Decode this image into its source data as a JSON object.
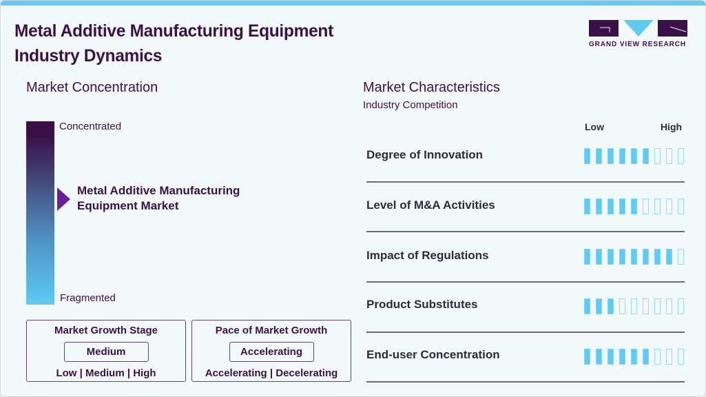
{
  "header": {
    "title_line1": "Metal Additive Manufacturing Equipment",
    "title_line2": "Industry Dynamics",
    "logo_text": "GRAND VIEW RESEARCH"
  },
  "colors": {
    "primary": "#3a1147",
    "accent": "#5ecbf5",
    "pointer": "#6a1f9b",
    "background": "#f3f8fb"
  },
  "concentration": {
    "title": "Market Concentration",
    "top_label": "Concentrated",
    "bottom_label": "Fragmented",
    "market_line1": "Metal Additive Manufacturing",
    "market_line2": "Equipment Market",
    "pointer_position_pct": 43
  },
  "growth_stage": {
    "title": "Market Growth Stage",
    "value": "Medium",
    "options": [
      "Low",
      "Medium",
      "High"
    ],
    "options_text": "Low  |  Medium  |  High"
  },
  "growth_pace": {
    "title": "Pace of Market Growth",
    "value": "Accelerating",
    "options": [
      "Accelerating",
      "Decelerating"
    ],
    "options_text": "Accelerating  |  Decelerating"
  },
  "characteristics": {
    "title": "Market Characteristics",
    "subtitle": "Industry Competition",
    "scale_low": "Low",
    "scale_high": "High",
    "max_level": 9,
    "rows": [
      {
        "label": "Degree of Innovation",
        "level": 6
      },
      {
        "label": "Level of M&A Activities",
        "level": 5
      },
      {
        "label": "Impact of Regulations",
        "level": 8
      },
      {
        "label": "Product Substitutes",
        "level": 3
      },
      {
        "label": "End-user Concentration",
        "level": 6
      }
    ]
  }
}
